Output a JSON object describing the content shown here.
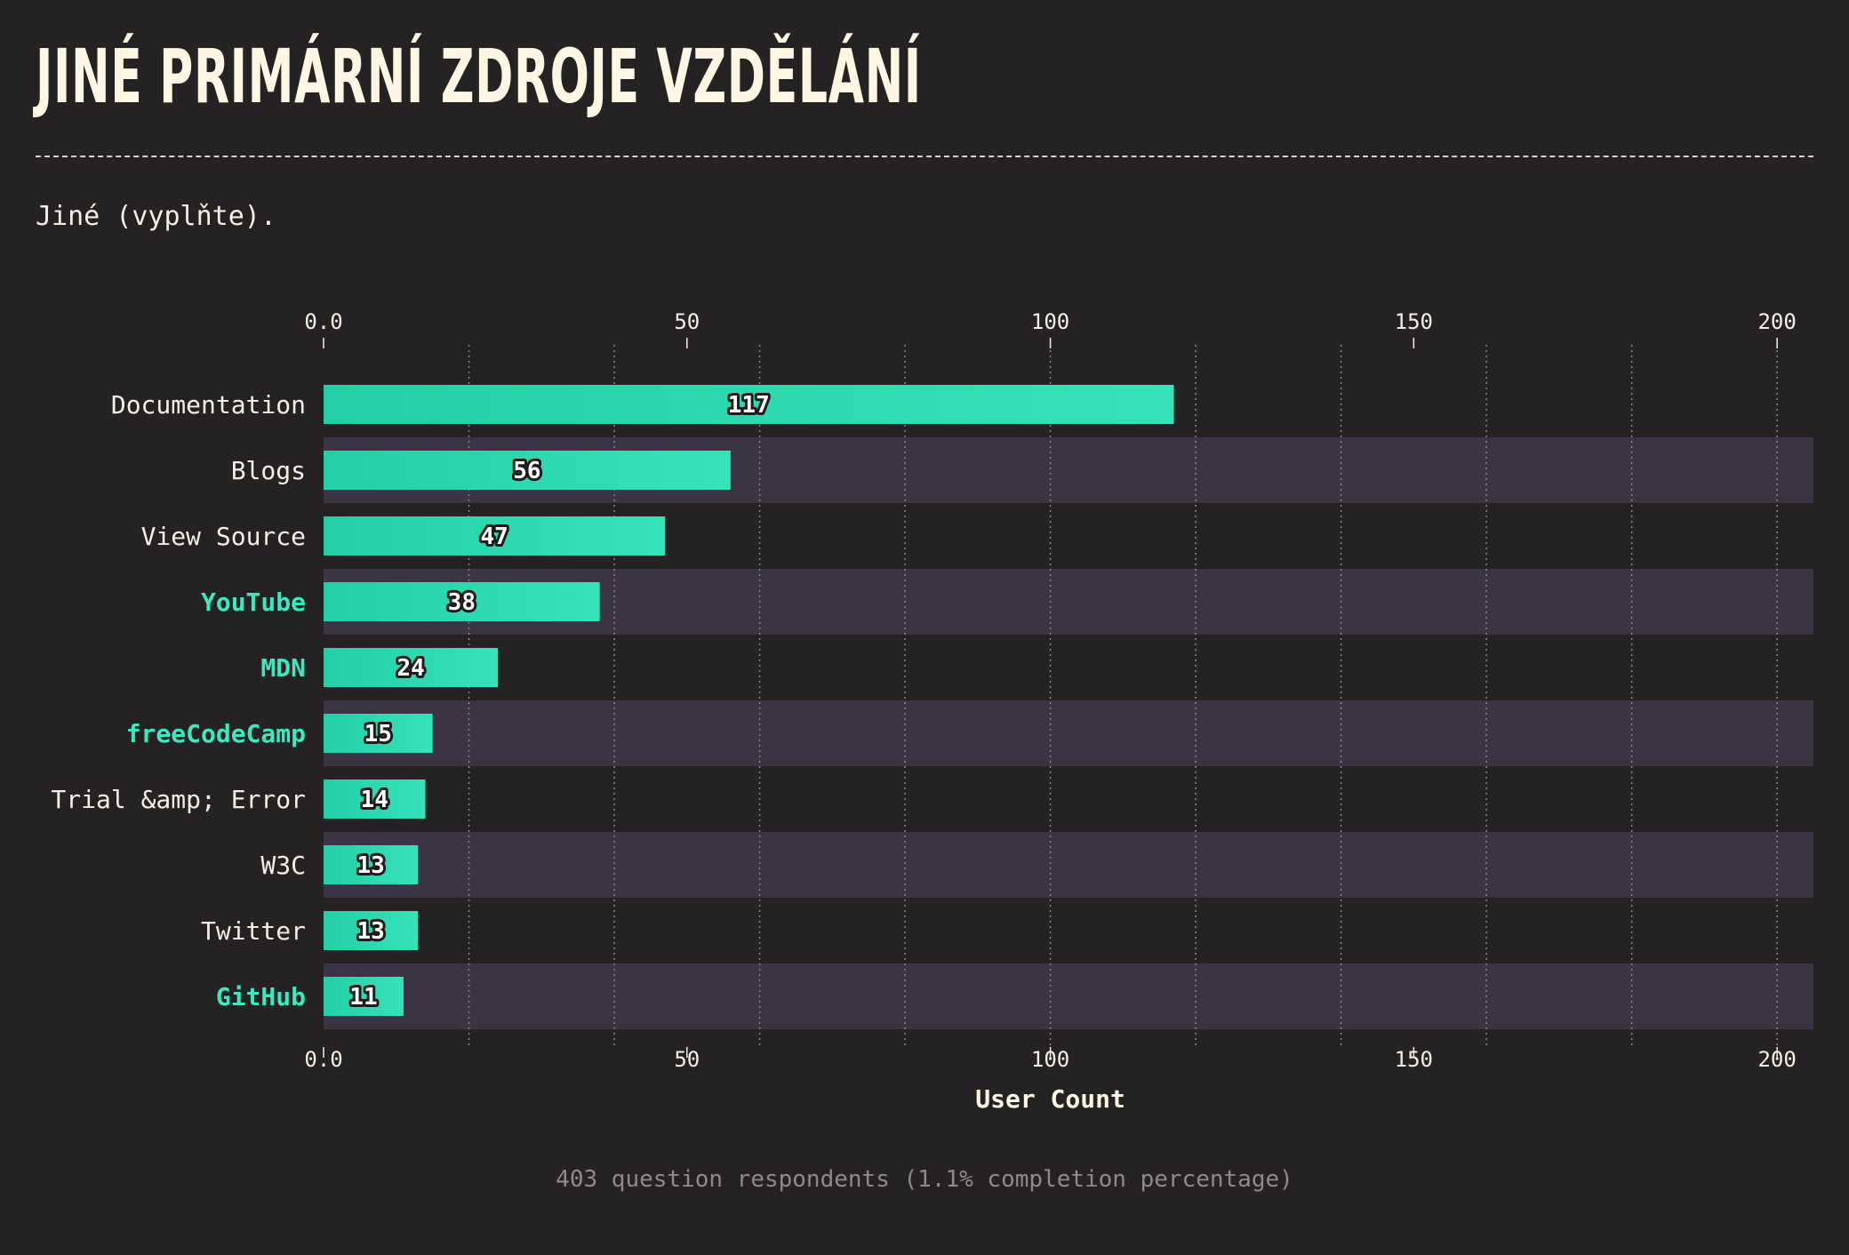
{
  "page": {
    "title": "JINÉ PRIMÁRNÍ ZDROJE VZDĚLÁNÍ",
    "subtitle": "Jiné (vyplňte).",
    "footnote": "403 question respondents (1.1% completion percentage)"
  },
  "colors": {
    "background": "#252223",
    "band": "#3a3445",
    "bar_start": "#22cfa6",
    "bar_end": "#35e2b9",
    "highlight_label": "#3de8c0",
    "text": "#f3efe4",
    "grid": "#8d8a8c"
  },
  "chart_data": {
    "type": "bar",
    "orientation": "horizontal",
    "categories": [
      "Documentation",
      "Blogs",
      "View Source",
      "YouTube",
      "MDN",
      "freeCodeCamp",
      "Trial &amp; Error",
      "W3C",
      "Twitter",
      "GitHub"
    ],
    "values": [
      117,
      56,
      47,
      38,
      24,
      15,
      14,
      13,
      13,
      11
    ],
    "highlighted": [
      false,
      false,
      false,
      true,
      true,
      true,
      false,
      false,
      false,
      true
    ],
    "xlabel": "User Count",
    "ylabel": "",
    "xlim": [
      0,
      205
    ],
    "xticks": [
      0,
      50,
      100,
      150,
      200
    ],
    "xtick_labels": [
      "0.0",
      "50",
      "100",
      "150",
      "200"
    ],
    "grid": true,
    "value_labels": true
  }
}
